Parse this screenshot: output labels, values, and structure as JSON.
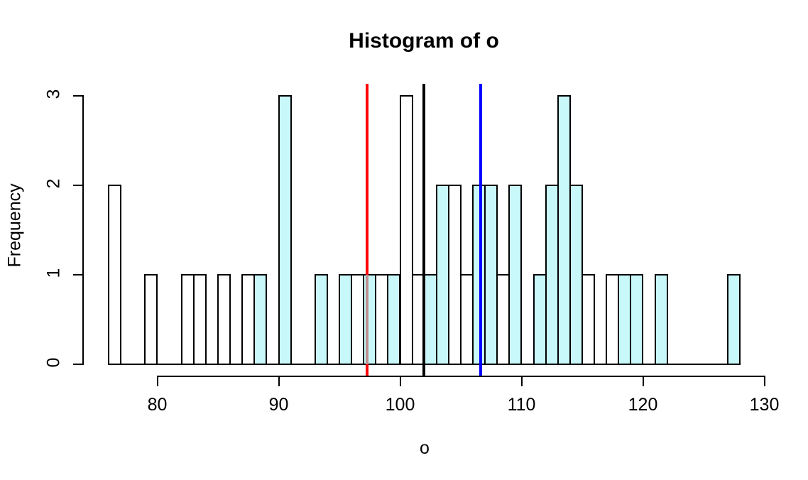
{
  "title": "Histogram of o",
  "chart_data": {
    "type": "bar",
    "subtype": "histogram-overlay",
    "title": "Histogram of o",
    "xlabel": "o",
    "ylabel": "Frequency",
    "x_ticks": [
      80,
      90,
      100,
      110,
      120,
      130
    ],
    "y_ticks": [
      0,
      1,
      2,
      3
    ],
    "xlim": [
      76,
      130
    ],
    "ylim": [
      0,
      3
    ],
    "bin_width": 1,
    "grid": false,
    "legend": "none",
    "background": "#ffffff",
    "axis_color": "#000000",
    "series": [
      {
        "name": "base-histogram",
        "fill": "#ffffff",
        "border": "#000000",
        "drawn_before_overlay": true,
        "bins": [
          {
            "start": 76,
            "count": 2
          },
          {
            "start": 79,
            "count": 1
          },
          {
            "start": 82,
            "count": 1
          },
          {
            "start": 83,
            "count": 1
          },
          {
            "start": 85,
            "count": 1
          },
          {
            "start": 87,
            "count": 1
          },
          {
            "start": 96,
            "count": 1
          },
          {
            "start": 98,
            "count": 1
          },
          {
            "start": 100,
            "count": 3
          },
          {
            "start": 101,
            "count": 1
          },
          {
            "start": 104,
            "count": 2
          },
          {
            "start": 105,
            "count": 1
          },
          {
            "start": 108,
            "count": 1
          },
          {
            "start": 115,
            "count": 1
          },
          {
            "start": 117,
            "count": 1
          }
        ]
      },
      {
        "name": "overlay-histogram",
        "fill": "#c9f8fa",
        "border": "#000000",
        "drawn_before_overlay": false,
        "bins": [
          {
            "start": 88,
            "count": 1
          },
          {
            "start": 90,
            "count": 3
          },
          {
            "start": 93,
            "count": 1
          },
          {
            "start": 95,
            "count": 1
          },
          {
            "start": 97,
            "count": 1
          },
          {
            "start": 99,
            "count": 1
          },
          {
            "start": 102,
            "count": 1
          },
          {
            "start": 103,
            "count": 2
          },
          {
            "start": 106,
            "count": 2
          },
          {
            "start": 107,
            "count": 2
          },
          {
            "start": 109,
            "count": 2
          },
          {
            "start": 111,
            "count": 1
          },
          {
            "start": 112,
            "count": 2
          },
          {
            "start": 113,
            "count": 3
          },
          {
            "start": 114,
            "count": 2
          },
          {
            "start": 118,
            "count": 1
          },
          {
            "start": 119,
            "count": 1
          },
          {
            "start": 121,
            "count": 1
          },
          {
            "start": 127,
            "count": 1
          }
        ]
      }
    ],
    "vlines": [
      {
        "name": "red-line",
        "x": 97.3,
        "color": "#ff0000",
        "occluded_color": "#ba9090",
        "drawn_before_overlay": true
      },
      {
        "name": "black-line",
        "x": 101.95,
        "color": "#000000",
        "drawn_before_overlay": false
      },
      {
        "name": "blue-line",
        "x": 106.63,
        "color": "#0000ff",
        "drawn_before_overlay": false
      }
    ]
  }
}
